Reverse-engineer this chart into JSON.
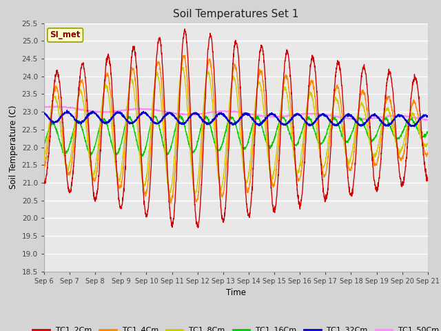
{
  "title": "Soil Temperatures Set 1",
  "xlabel": "Time",
  "ylabel": "Soil Temperature (C)",
  "ylim": [
    18.5,
    25.5
  ],
  "line_colors": {
    "TC1_2Cm": "#cc0000",
    "TC1_4Cm": "#ff8800",
    "TC1_8Cm": "#cccc00",
    "TC1_16Cm": "#00cc00",
    "TC1_32Cm": "#0000cc",
    "TC1_50Cm": "#ff88ff"
  },
  "annotation_text": "SI_met",
  "annotation_bg": "#ffffcc",
  "annotation_border": "#999900",
  "fig_bg": "#d4d4d4",
  "plot_bg": "#e8e8e8",
  "grid_color": "#ffffff",
  "n_days": 15,
  "start_day": 6,
  "points_per_day": 144
}
